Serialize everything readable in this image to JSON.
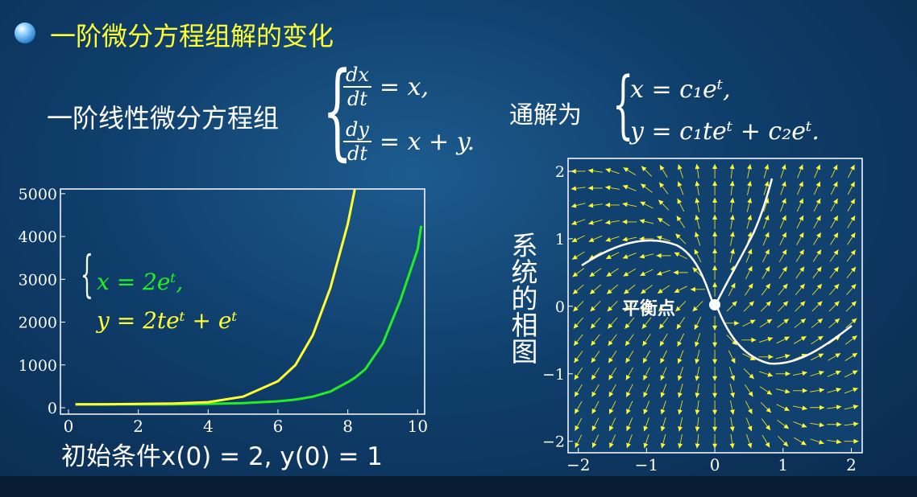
{
  "slide_title": "一阶微分方程组解的变化",
  "system": {
    "label": "一阶线性微分方程组",
    "rows": [
      {
        "num": "dx",
        "den": "dt",
        "rhs": "= x,"
      },
      {
        "num": "dy",
        "den": "dt",
        "rhs": "= x + y."
      }
    ]
  },
  "solution": {
    "label": "通解为",
    "rows": [
      "x = c₁eᵗ,",
      "y = c₁teᵗ + c₂eᵗ."
    ]
  },
  "caption": "初始条件x(0) = 2, y(0) = 1",
  "chart_data": [
    {
      "type": "line",
      "annotations": [
        "x = 2eᵗ,",
        "y = 2teᵗ + eᵗ"
      ],
      "x": [
        0.2,
        1,
        2,
        3,
        4,
        5,
        6,
        6.5,
        7,
        7.5,
        8,
        8.2,
        8.5,
        9,
        9.5,
        10,
        10.1
      ],
      "series": [
        {
          "name": "x",
          "color": "#22ee22",
          "values": [
            80,
            80,
            80,
            82,
            90,
            110,
            150,
            190,
            260,
            380,
            600,
            700,
            900,
            1500,
            2500,
            3700,
            4250
          ]
        },
        {
          "name": "y",
          "color": "#ffff33",
          "values": [
            80,
            82,
            88,
            100,
            130,
            260,
            620,
            1000,
            1700,
            2800,
            4300,
            5100,
            null,
            null,
            null,
            null,
            null
          ]
        }
      ],
      "xlim": [
        -0.23,
        10.2
      ],
      "xticks": [
        0,
        2,
        4,
        6,
        8,
        10
      ],
      "ylim": [
        -150,
        5110
      ],
      "yticks": [
        0,
        1000,
        2000,
        3000,
        4000,
        5000
      ]
    },
    {
      "type": "vector-field",
      "ylabel": "系统的相图",
      "annotation": "平衡点",
      "xlim": [
        -2.15,
        2.16
      ],
      "xticks": [
        {
          "value": -2,
          "label": "−2"
        },
        {
          "value": -1,
          "label": "−1"
        },
        0,
        1,
        2
      ],
      "ylim": [
        -2.17,
        2.19
      ],
      "yticks": [
        {
          "value": -2,
          "label": "−2"
        },
        {
          "value": -1,
          "label": "−1"
        },
        0,
        1,
        2
      ]
    }
  ]
}
